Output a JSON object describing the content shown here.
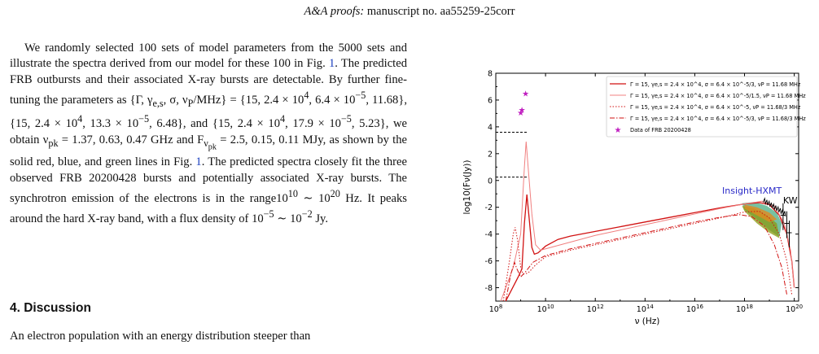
{
  "header": {
    "journal": "A&A proofs:",
    "manuscript": "manuscript no. aa55259-25corr"
  },
  "body": {
    "para1_a": "We randomly selected 100 sets of model parameters from the 5000 sets and illustrate the spectra derived from our model for these 100 in Fig. ",
    "fig_ref": "1",
    "para1_b": ". The predicted FRB outbursts and their associated X-ray bursts are detectable. By further fine-tuning the parameters as {Γ, γ",
    "para1_c": ", σ, ν",
    "para1_d": "/MHz} = {15, 2.4 × 10",
    "para1_e": ", 6.4 × 10",
    "para1_f": ", 11.68}, {15, 2.4 × 10",
    "para1_g": ", 13.3 × 10",
    "para1_h": ", 6.48}, and {15, 2.4 × 10",
    "para1_i": ", 17.9 × 10",
    "para1_j": ", 5.23}, we obtain ν",
    "para1_k": " = 1.37, 0.63, 0.47 GHz and F",
    "para1_l": " = 2.5, 0.15, 0.11 MJy, as shown by the solid red, blue, and green lines in Fig. ",
    "para1_m": ". The predicted spectra closely fit the three observed FRB 20200428 bursts and potentially associated X-ray bursts. The synchrotron emission of the electrons is in the range10",
    "para1_n": " ∼ 10",
    "para1_o": " Hz. It peaks around the hard X-ray band, with a flux density of 10",
    "para1_p": " ∼ 10",
    "para1_q": " Jy.",
    "section_title": "4. Discussion",
    "para2": "An electron population with an energy distribution steeper than"
  },
  "chart_data": {
    "type": "line",
    "xlabel": "ν (Hz)",
    "ylabel": "log10(Fν(Jy))",
    "xscale": "log",
    "xlim": [
      100000000.0,
      1.5e+20
    ],
    "ylim": [
      -9,
      8
    ],
    "xticks": [
      100000000.0,
      10000000000.0,
      1000000000000.0,
      100000000000000.0,
      1e+16,
      1e+18,
      1e+20
    ],
    "yticks": [
      -8,
      -6,
      -4,
      -2,
      0,
      2,
      4,
      6,
      8
    ],
    "annotations": [
      {
        "text": "Insight-HXMT",
        "color": "#2a2ac8"
      },
      {
        "text": "KW",
        "color": "#000000"
      }
    ],
    "legend": {
      "position": "top-right",
      "entries": [
        {
          "label": "Γ = 15, γe,s = 2.4 × 10^4, σ = 6.4 × 10^-5/3, νP = 11.68 MHz",
          "style": "solid",
          "color": "#d11212"
        },
        {
          "label": "Γ = 15, γe,s = 2.4 × 10^4, σ = 6.4 × 10^-5/1.5, νP = 11.68 MHz",
          "style": "solid-thin",
          "color": "#f08080"
        },
        {
          "label": "Γ = 15, γe,s = 2.4 × 10^4, σ = 6.4 × 10^-5, νP = 11.68/3 MHz",
          "style": "dotted",
          "color": "#d11212"
        },
        {
          "label": "Γ = 15, γe,s = 2.4 × 10^4, σ = 6.4 × 10^-5/3, νP = 11.68/3 MHz",
          "style": "dashdot",
          "color": "#d11212"
        },
        {
          "label": "Data of FRB 20200428",
          "style": "star",
          "color": "#c020c0"
        }
      ]
    },
    "series": [
      {
        "name": "Γ = 15, γe,s = 2.4 × 10^4, σ = 6.4 × 10^-5/3, νP = 11.68 MHz",
        "points": [
          [
            8.4,
            -9
          ],
          [
            8.9,
            -7.2
          ],
          [
            9.05,
            -6.6
          ],
          [
            9.15,
            -3.2
          ],
          [
            9.25,
            -1.05
          ],
          [
            9.33,
            -2.6
          ],
          [
            9.45,
            -5.0
          ],
          [
            9.55,
            -5.5
          ],
          [
            9.7,
            -5.4
          ],
          [
            10.0,
            -4.9
          ],
          [
            10.5,
            -4.4
          ],
          [
            11.0,
            -4.15
          ],
          [
            12,
            -3.8
          ],
          [
            13,
            -3.45
          ],
          [
            14,
            -3.1
          ],
          [
            15,
            -2.75
          ],
          [
            16,
            -2.4
          ],
          [
            17,
            -2.05
          ],
          [
            18,
            -1.75
          ],
          [
            18.6,
            -1.65
          ],
          [
            19.0,
            -1.8
          ],
          [
            19.4,
            -2.6
          ],
          [
            19.7,
            -4.0
          ],
          [
            19.9,
            -6.0
          ],
          [
            20.0,
            -8.0
          ]
        ]
      },
      {
        "name": "Γ = 15, γe,s = 2.4 × 10^4, σ = 6.4 × 10^-5/1.5, νP = 11.68 MHz",
        "points": [
          [
            8.2,
            -9
          ],
          [
            8.7,
            -6.5
          ],
          [
            9.0,
            -4.0
          ],
          [
            9.15,
            1.0
          ],
          [
            9.22,
            2.9
          ],
          [
            9.3,
            1.0
          ],
          [
            9.45,
            -2.5
          ],
          [
            9.6,
            -4.8
          ],
          [
            9.8,
            -5.2
          ],
          [
            10.2,
            -5.0
          ],
          [
            11,
            -4.6
          ],
          [
            12,
            -4.1
          ],
          [
            13,
            -3.7
          ],
          [
            14,
            -3.3
          ],
          [
            15,
            -2.9
          ],
          [
            16,
            -2.5
          ],
          [
            17,
            -2.1
          ],
          [
            18,
            -1.75
          ],
          [
            18.7,
            -1.55
          ],
          [
            19.2,
            -1.9
          ],
          [
            19.6,
            -3.2
          ],
          [
            19.85,
            -5.2
          ],
          [
            20.0,
            -8.0
          ]
        ]
      },
      {
        "name": "Γ = 15, γe,s = 2.4 × 10^4, σ = 6.4 × 10^-5, νP = 11.68/3 MHz",
        "points": [
          [
            8.3,
            -9
          ],
          [
            8.55,
            -6.0
          ],
          [
            8.7,
            -4.0
          ],
          [
            8.78,
            -3.5
          ],
          [
            8.88,
            -4.5
          ],
          [
            9.0,
            -6.5
          ],
          [
            9.1,
            -7.0
          ],
          [
            9.3,
            -6.9
          ],
          [
            9.6,
            -6.3
          ],
          [
            10,
            -5.7
          ],
          [
            11,
            -5.2
          ],
          [
            12,
            -4.8
          ],
          [
            13,
            -4.4
          ],
          [
            14,
            -4.0
          ],
          [
            15,
            -3.6
          ],
          [
            16,
            -3.2
          ],
          [
            17,
            -2.8
          ],
          [
            18,
            -2.35
          ],
          [
            18.6,
            -2.3
          ],
          [
            19.0,
            -2.8
          ],
          [
            19.4,
            -4.0
          ],
          [
            19.7,
            -6.0
          ],
          [
            19.9,
            -8.5
          ]
        ]
      },
      {
        "name": "Γ = 15, γe,s = 2.4 × 10^4, σ = 6.4 × 10^-5/3, νP = 11.68/3 MHz",
        "points": [
          [
            8.4,
            -9
          ],
          [
            8.6,
            -7.0
          ],
          [
            8.75,
            -6.1
          ],
          [
            8.85,
            -6.6
          ],
          [
            9.0,
            -7.2
          ],
          [
            9.2,
            -6.8
          ],
          [
            9.5,
            -6.1
          ],
          [
            10,
            -5.6
          ],
          [
            11,
            -5.1
          ],
          [
            12,
            -4.7
          ],
          [
            13,
            -4.3
          ],
          [
            14,
            -3.9
          ],
          [
            15,
            -3.5
          ],
          [
            16,
            -3.1
          ],
          [
            17,
            -2.75
          ],
          [
            17.8,
            -2.55
          ],
          [
            18.3,
            -2.7
          ],
          [
            18.8,
            -3.4
          ],
          [
            19.2,
            -4.8
          ],
          [
            19.5,
            -6.5
          ],
          [
            19.7,
            -8.5
          ]
        ]
      }
    ],
    "frb_data": {
      "x": [
        9.0,
        9.05,
        9.2
      ],
      "y": [
        5.1,
        5.3,
        6.5
      ]
    },
    "dashed_limits": [
      {
        "x": [
          8,
          9.3
        ],
        "y": 3.6
      },
      {
        "x": [
          8,
          9.3
        ],
        "y": 0.25
      }
    ]
  }
}
